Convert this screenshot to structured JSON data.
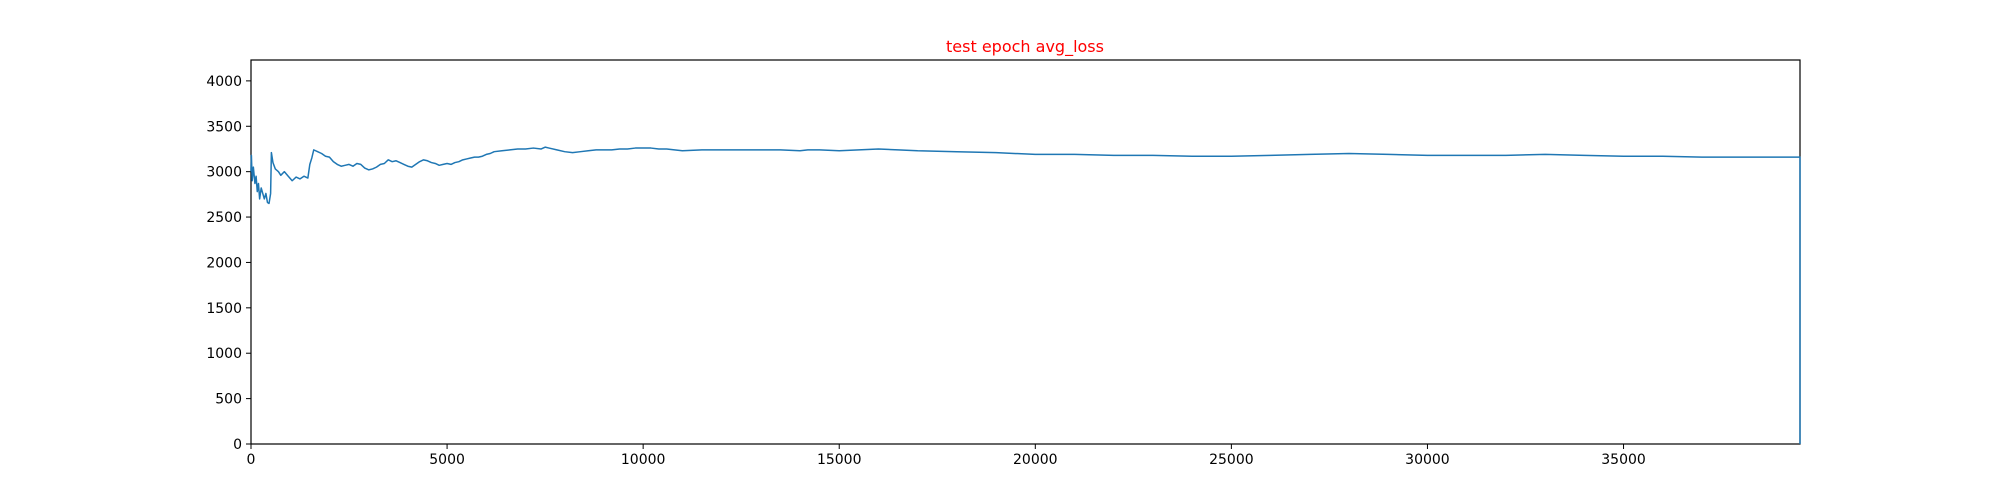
{
  "chart_data": {
    "type": "line",
    "title": "test epoch avg_loss",
    "title_color": "#ff0000",
    "xlabel": "",
    "ylabel": "",
    "xlim": [
      0,
      39500
    ],
    "ylim": [
      0,
      4230
    ],
    "x_ticks": [
      0,
      5000,
      10000,
      15000,
      20000,
      25000,
      30000,
      35000
    ],
    "y_ticks": [
      0,
      500,
      1000,
      1500,
      2000,
      2500,
      3000,
      3500,
      4000
    ],
    "x_tick_labels": [
      "0",
      "5000",
      "10000",
      "15000",
      "20000",
      "25000",
      "30000",
      "35000"
    ],
    "y_tick_labels": [
      "0",
      "500",
      "1000",
      "1500",
      "2000",
      "2500",
      "3000",
      "3500",
      "4000"
    ],
    "grid": false,
    "legend": "none",
    "series": [
      {
        "color": "#1f77b4",
        "points": [
          [
            0,
            3000
          ],
          [
            10,
            3180
          ],
          [
            30,
            2900
          ],
          [
            60,
            3050
          ],
          [
            100,
            2870
          ],
          [
            130,
            2950
          ],
          [
            160,
            2780
          ],
          [
            190,
            2870
          ],
          [
            220,
            2700
          ],
          [
            260,
            2820
          ],
          [
            300,
            2760
          ],
          [
            340,
            2700
          ],
          [
            380,
            2760
          ],
          [
            420,
            2660
          ],
          [
            460,
            2650
          ],
          [
            500,
            2760
          ],
          [
            520,
            3210
          ],
          [
            560,
            3100
          ],
          [
            620,
            3030
          ],
          [
            700,
            3000
          ],
          [
            760,
            2960
          ],
          [
            850,
            3000
          ],
          [
            950,
            2950
          ],
          [
            1050,
            2900
          ],
          [
            1150,
            2940
          ],
          [
            1250,
            2920
          ],
          [
            1350,
            2950
          ],
          [
            1450,
            2930
          ],
          [
            1500,
            3080
          ],
          [
            1550,
            3150
          ],
          [
            1600,
            3240
          ],
          [
            1700,
            3220
          ],
          [
            1800,
            3200
          ],
          [
            1900,
            3170
          ],
          [
            2000,
            3160
          ],
          [
            2100,
            3110
          ],
          [
            2200,
            3080
          ],
          [
            2300,
            3060
          ],
          [
            2400,
            3070
          ],
          [
            2500,
            3080
          ],
          [
            2600,
            3060
          ],
          [
            2700,
            3090
          ],
          [
            2800,
            3080
          ],
          [
            2900,
            3040
          ],
          [
            3000,
            3020
          ],
          [
            3100,
            3030
          ],
          [
            3200,
            3050
          ],
          [
            3300,
            3080
          ],
          [
            3400,
            3090
          ],
          [
            3500,
            3130
          ],
          [
            3600,
            3110
          ],
          [
            3700,
            3120
          ],
          [
            3800,
            3100
          ],
          [
            3900,
            3080
          ],
          [
            4000,
            3060
          ],
          [
            4100,
            3050
          ],
          [
            4200,
            3080
          ],
          [
            4300,
            3110
          ],
          [
            4400,
            3130
          ],
          [
            4500,
            3120
          ],
          [
            4600,
            3100
          ],
          [
            4700,
            3090
          ],
          [
            4800,
            3070
          ],
          [
            4900,
            3080
          ],
          [
            5000,
            3090
          ],
          [
            5100,
            3080
          ],
          [
            5200,
            3100
          ],
          [
            5300,
            3110
          ],
          [
            5400,
            3130
          ],
          [
            5500,
            3140
          ],
          [
            5600,
            3150
          ],
          [
            5700,
            3160
          ],
          [
            5800,
            3160
          ],
          [
            5900,
            3170
          ],
          [
            6000,
            3190
          ],
          [
            6100,
            3200
          ],
          [
            6200,
            3220
          ],
          [
            6400,
            3230
          ],
          [
            6600,
            3240
          ],
          [
            6800,
            3250
          ],
          [
            7000,
            3250
          ],
          [
            7200,
            3260
          ],
          [
            7400,
            3250
          ],
          [
            7500,
            3270
          ],
          [
            7600,
            3260
          ],
          [
            7800,
            3240
          ],
          [
            8000,
            3220
          ],
          [
            8200,
            3210
          ],
          [
            8400,
            3220
          ],
          [
            8600,
            3230
          ],
          [
            8800,
            3240
          ],
          [
            9000,
            3240
          ],
          [
            9200,
            3240
          ],
          [
            9400,
            3250
          ],
          [
            9600,
            3250
          ],
          [
            9800,
            3260
          ],
          [
            10000,
            3260
          ],
          [
            10200,
            3260
          ],
          [
            10400,
            3250
          ],
          [
            10600,
            3250
          ],
          [
            10800,
            3240
          ],
          [
            11000,
            3230
          ],
          [
            11500,
            3240
          ],
          [
            12000,
            3240
          ],
          [
            12500,
            3240
          ],
          [
            13000,
            3240
          ],
          [
            13500,
            3240
          ],
          [
            14000,
            3230
          ],
          [
            14200,
            3240
          ],
          [
            14500,
            3240
          ],
          [
            15000,
            3230
          ],
          [
            15500,
            3240
          ],
          [
            16000,
            3250
          ],
          [
            16500,
            3240
          ],
          [
            17000,
            3230
          ],
          [
            18000,
            3220
          ],
          [
            19000,
            3210
          ],
          [
            20000,
            3190
          ],
          [
            21000,
            3190
          ],
          [
            22000,
            3180
          ],
          [
            23000,
            3180
          ],
          [
            24000,
            3170
          ],
          [
            25000,
            3170
          ],
          [
            26000,
            3180
          ],
          [
            27000,
            3190
          ],
          [
            28000,
            3200
          ],
          [
            29000,
            3190
          ],
          [
            30000,
            3180
          ],
          [
            31000,
            3180
          ],
          [
            32000,
            3180
          ],
          [
            33000,
            3190
          ],
          [
            34000,
            3180
          ],
          [
            35000,
            3170
          ],
          [
            36000,
            3170
          ],
          [
            37000,
            3160
          ],
          [
            38000,
            3160
          ],
          [
            39000,
            3160
          ],
          [
            39500,
            3160
          ],
          [
            39500,
            0
          ]
        ]
      }
    ]
  }
}
